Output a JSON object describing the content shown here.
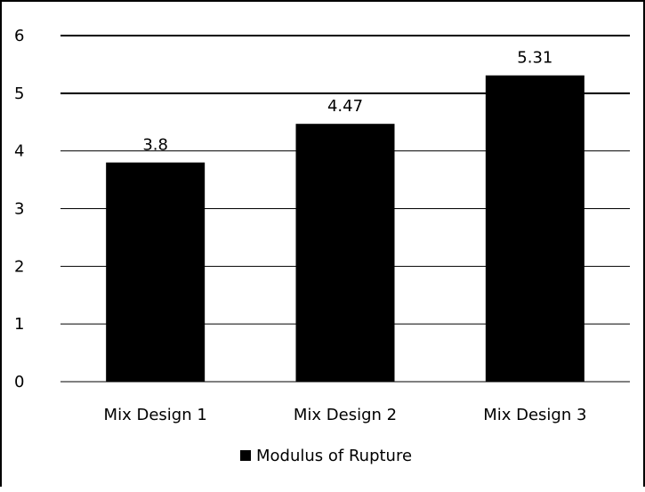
{
  "chart_data": {
    "type": "bar",
    "categories": [
      "Mix Design 1",
      "Mix Design 2",
      "Mix Design 3"
    ],
    "series": [
      {
        "name": "Modulus of Rupture",
        "values": [
          3.8,
          4.47,
          5.31
        ],
        "color": "#000000"
      }
    ],
    "data_labels": [
      "3.8",
      "4.47",
      "5.31"
    ],
    "y_ticks": [
      "0",
      "1",
      "2",
      "3",
      "4",
      "5",
      "6"
    ],
    "ylim": [
      0,
      6
    ],
    "grid": true,
    "legend_position": "bottom",
    "title": "",
    "xlabel": "",
    "ylabel": ""
  }
}
